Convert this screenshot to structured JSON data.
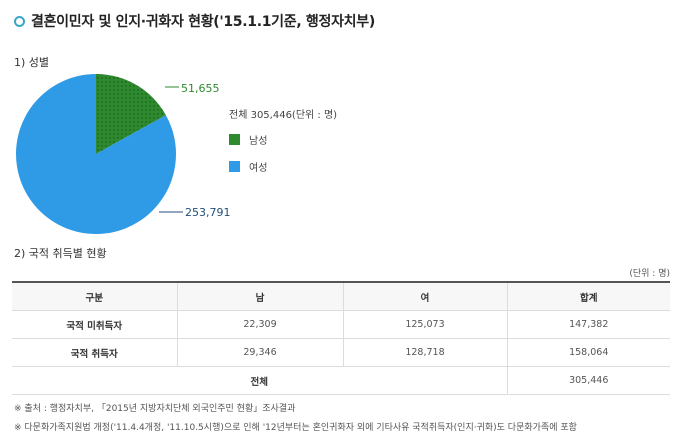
{
  "header": {
    "title": "결혼이민자 및 인지·귀화자 현황('15.1.1기준, 행정자치부)"
  },
  "section1": {
    "label": "1) 성별"
  },
  "section2": {
    "label": "2) 국적 취득별 현황"
  },
  "legend": {
    "total": "전체 305,446(단위 : 명)"
  },
  "chart_data": {
    "type": "pie",
    "slices": [
      {
        "name": "남성",
        "value": 51655,
        "label": "51,655",
        "color": "#2e8a2e",
        "label_color": "#2e8a2e"
      },
      {
        "name": "여성",
        "value": 253791,
        "label": "253,791",
        "color": "#2f9be6",
        "label_color": "#1f4e79"
      }
    ],
    "total": 305446
  },
  "table": {
    "unit": "(단위 : 명)",
    "headers": [
      "구분",
      "남",
      "여",
      "합계"
    ],
    "rows": [
      [
        "국적 미취득자",
        "22,309",
        "125,073",
        "147,382"
      ],
      [
        "국적 취득자",
        "29,346",
        "128,718",
        "158,064"
      ]
    ],
    "total_label": "전체",
    "total_value": "305,446"
  },
  "notes": [
    "※ 출처 : 행정자치부, 「2015년 지방자치단체 외국인주민 현황」조사결과",
    "※ 다문화가족지원법 개정('11.4.4개정, '11.10.5시행)으로 인해 '12년부터는 혼인귀화자 외에 기타사유 국적취득자(인지·귀화)도 다문화가족에 포함"
  ]
}
